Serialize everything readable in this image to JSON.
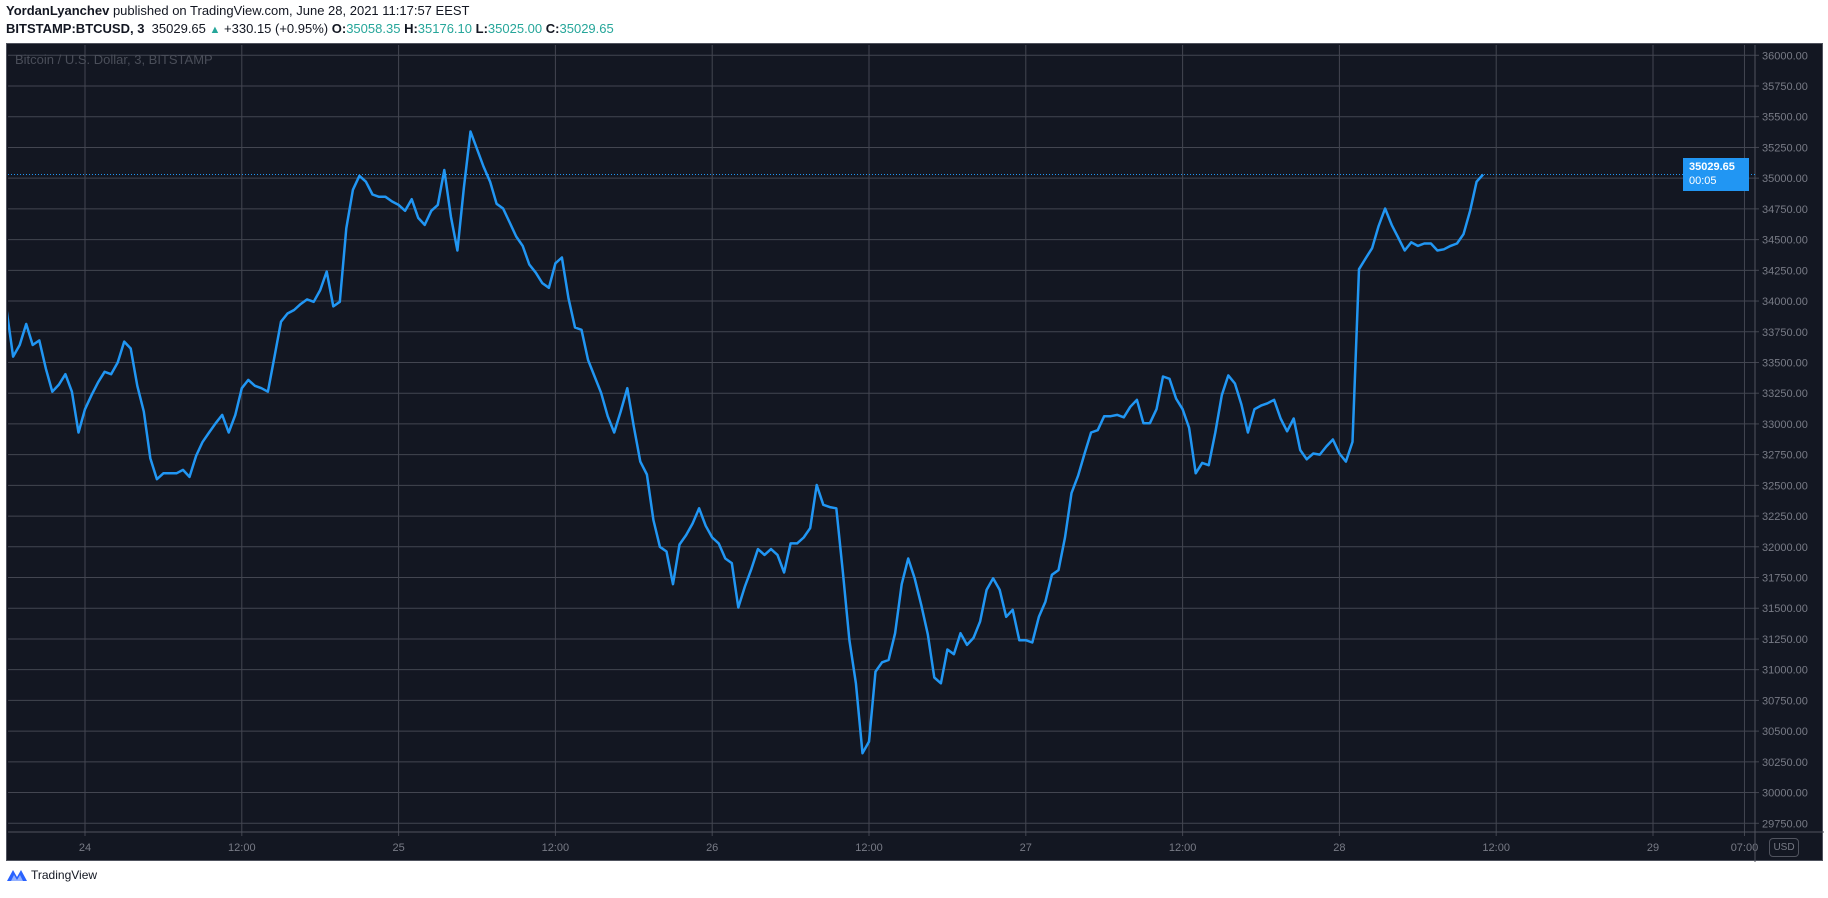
{
  "header": {
    "author": "YordanLyanchev",
    "published": "published on TradingView.com, June 28, 2021 11:17:57 EEST",
    "symbol": "BITSTAMP:BTCUSD, 3",
    "last": "35029.65",
    "change": "+330.15 (+0.95%)",
    "change_arrow": "▲",
    "o_label": "O:",
    "o": "35058.35",
    "h_label": "H:",
    "h": "35176.10",
    "l_label": "L:",
    "l": "35025.00",
    "c_label": "C:",
    "c": "35029.65"
  },
  "watermark": "Bitcoin / U.S. Dollar, 3, BITSTAMP",
  "currency": "USD",
  "last_price_label": {
    "price": "35029.65",
    "countdown": "00:05"
  },
  "footer": {
    "brand": "TradingView"
  },
  "colors": {
    "background": "#131722",
    "line": "#2196f3",
    "grid": "#434651",
    "up": "#26a69a",
    "axis_text": "#787b86"
  },
  "chart_data": {
    "type": "line",
    "title": "",
    "series": [
      {
        "x_start": "2021-06-23 18:00",
        "x_step_minutes": 30,
        "values": [
          33927,
          33548,
          33642,
          33813,
          33642,
          33680,
          33452,
          33262,
          33320,
          33405,
          33262,
          32930,
          33120,
          33234,
          33339,
          33424,
          33405,
          33500,
          33670,
          33614,
          33310,
          33101,
          32721,
          32550,
          32598,
          32598,
          32598,
          32626,
          32569,
          32740,
          32854,
          32930,
          33006,
          33073,
          32930,
          33073,
          33291,
          33358,
          33310,
          33291,
          33262,
          33548,
          33832,
          33899,
          33927,
          33975,
          34013,
          33994,
          34089,
          34240,
          33956,
          33994,
          34592,
          34905,
          35019,
          34971,
          34867,
          34848,
          34848,
          34810,
          34782,
          34734,
          34829,
          34677,
          34620,
          34734,
          34782,
          35066,
          34687,
          34411,
          34924,
          35380,
          35237,
          35095,
          34971,
          34791,
          34753,
          34639,
          34525,
          34449,
          34297,
          34231,
          34146,
          34108,
          34307,
          34354,
          34022,
          33785,
          33766,
          33519,
          33386,
          33253,
          33063,
          32930,
          33101,
          33291,
          32978,
          32693,
          32588,
          32218,
          32000,
          31962,
          31696,
          32019,
          32095,
          32190,
          32313,
          32171,
          32076,
          32028,
          31905,
          31867,
          31506,
          31677,
          31820,
          31981,
          31934,
          31981,
          31934,
          31791,
          32028,
          32028,
          32076,
          32152,
          32503,
          32342,
          32323,
          32313,
          31791,
          31240,
          30889,
          30320,
          30415,
          30984,
          31060,
          31079,
          31297,
          31696,
          31905,
          31743,
          31525,
          31288,
          30936,
          30889,
          31164,
          31126,
          31297,
          31202,
          31259,
          31392,
          31649,
          31744,
          31649,
          31430,
          31487,
          31240,
          31240,
          31221,
          31430,
          31553,
          31772,
          31810,
          32076,
          32437,
          32579,
          32759,
          32930,
          32949,
          33063,
          33063,
          33073,
          33054,
          33139,
          33196,
          33006,
          33006,
          33120,
          33386,
          33367,
          33206,
          33120,
          32968,
          32598,
          32683,
          32664,
          32930,
          33234,
          33395,
          33329,
          33158,
          32930,
          33120,
          33149,
          33168,
          33196,
          33044,
          32940,
          33044,
          32788,
          32712,
          32759,
          32750,
          32816,
          32873,
          32759,
          32693,
          32854,
          34259,
          34345,
          34430,
          34611,
          34753,
          34620,
          34516,
          34411,
          34478,
          34449,
          34468,
          34468,
          34411,
          34421,
          34449,
          34468,
          34544,
          34734,
          34971,
          35030
        ]
      }
    ],
    "last_price": 35029.65,
    "ylim": [
      29650,
      36050
    ],
    "y_ticks": [
      "36000.00",
      "35750.00",
      "35500.00",
      "35250.00",
      "35000.00",
      "34750.00",
      "34500.00",
      "34250.00",
      "34000.00",
      "33750.00",
      "33500.00",
      "33250.00",
      "33000.00",
      "32750.00",
      "32500.00",
      "32250.00",
      "32000.00",
      "31750.00",
      "31500.00",
      "31250.00",
      "31000.00",
      "30750.00",
      "30500.00",
      "30250.00",
      "30000.00",
      "29750.00"
    ],
    "x_ticks": [
      {
        "time": "2021-06-24 00:00",
        "label": "24"
      },
      {
        "time": "2021-06-24 12:00",
        "label": "12:00"
      },
      {
        "time": "2021-06-25 00:00",
        "label": "25"
      },
      {
        "time": "2021-06-25 12:00",
        "label": "12:00"
      },
      {
        "time": "2021-06-26 00:00",
        "label": "26"
      },
      {
        "time": "2021-06-26 12:00",
        "label": "12:00"
      },
      {
        "time": "2021-06-27 00:00",
        "label": "27"
      },
      {
        "time": "2021-06-27 12:00",
        "label": "12:00"
      },
      {
        "time": "2021-06-28 00:00",
        "label": "28"
      },
      {
        "time": "2021-06-28 12:00",
        "label": "12:00"
      },
      {
        "time": "2021-06-29 00:00",
        "label": "29"
      },
      {
        "time": "2021-06-29 07:00",
        "label": "07:00"
      }
    ],
    "grid": true,
    "xlabel": "",
    "ylabel": ""
  }
}
